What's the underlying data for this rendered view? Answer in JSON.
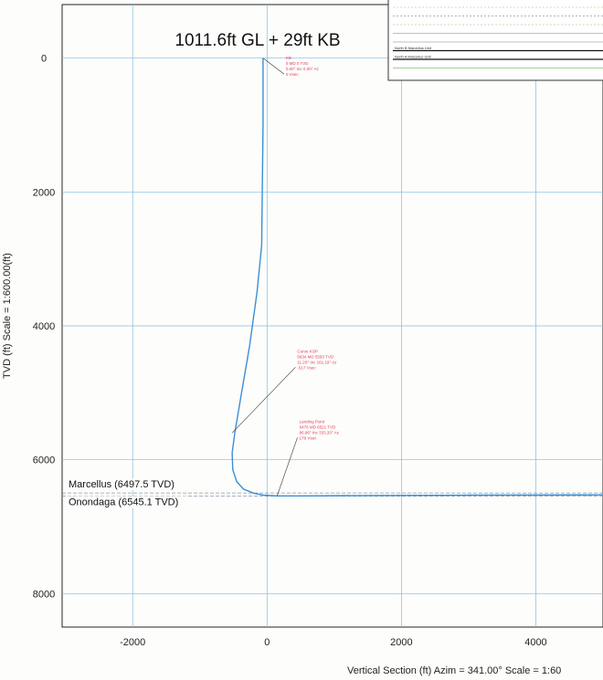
{
  "chart_data": {
    "type": "line",
    "title": "1011.6ft GL + 29ft KB",
    "xlabel": "Vertical Section (ft) Azim = 341.00° Scale = 1:60",
    "ylabel": "TVD (ft) Scale = 1:600.00(ft)",
    "xlim": [
      -3050,
      5000
    ],
    "ylim": [
      8500,
      -800
    ],
    "y_inverted": true,
    "grid": true,
    "x_ticks": [
      -2000,
      0,
      2000,
      4000
    ],
    "y_ticks": [
      0,
      2000,
      4000,
      6000,
      8000
    ],
    "x_tick_labels": [
      "-2000",
      "0",
      "2000",
      "4000"
    ],
    "y_tick_labels": [
      "0",
      "2000",
      "4000",
      "6000",
      "8000"
    ],
    "series": [
      {
        "color": "#3b8fd6",
        "x": [
          -60,
          -60,
          -80,
          -150,
          -260,
          -380,
          -480,
          -520,
          -510,
          -450,
          -350,
          -200,
          -50,
          150,
          500,
          1500,
          3000,
          5000
        ],
        "y": [
          0,
          1000,
          2800,
          3500,
          4300,
          5000,
          5600,
          5900,
          6150,
          6330,
          6440,
          6500,
          6530,
          6540,
          6540,
          6535,
          6530,
          6525
        ]
      }
    ],
    "formations": [
      {
        "label": "Marcellus (6497.5 TVD)",
        "tvd": 6497.5
      },
      {
        "label": "Onondaga (6545.1 TVD)",
        "tvd": 6545.1
      }
    ],
    "annotations": [
      {
        "lines": [
          "KB",
          "0 MD  0 TVD",
          "0.00° Inc 0.00° Az",
          "0 Vsec"
        ],
        "point": [
          -60,
          0
        ],
        "text_at": [
          280,
          20
        ]
      },
      {
        "lines": [
          "Curve KOP",
          "5634 MD  5593 TVD",
          "11.20° Inc 161.19° Az",
          "-517 Vsec"
        ],
        "point": [
          -520,
          5600
        ],
        "text_at": [
          450,
          4400
        ]
      },
      {
        "lines": [
          "Landing Point",
          "6476 MD  6521 TVD",
          "86.96° Inc 333.20° Az",
          "179 Vsec"
        ],
        "point": [
          150,
          6540
        ],
        "text_at": [
          480,
          5450
        ]
      }
    ]
  },
  "legend": {
    "entries": [
      {
        "label": "",
        "color": "#cfcf9a",
        "style": "dashed"
      },
      {
        "label": "",
        "color": "#999999",
        "style": "dashed"
      },
      {
        "label": "",
        "color": "#b9d3a0",
        "style": "dashed"
      },
      {
        "label": "",
        "color": "#8fc17a",
        "style": "solid"
      },
      {
        "label": "",
        "color": "#aaaaaa",
        "style": "solid"
      },
      {
        "label": "North B Marcellus Unit",
        "color": "#111111",
        "style": "solid"
      },
      {
        "label": "North A Marcellus Unit",
        "color": "#111111",
        "style": "solid"
      },
      {
        "label": "",
        "color": "#7fc46a",
        "style": "solid"
      }
    ]
  }
}
